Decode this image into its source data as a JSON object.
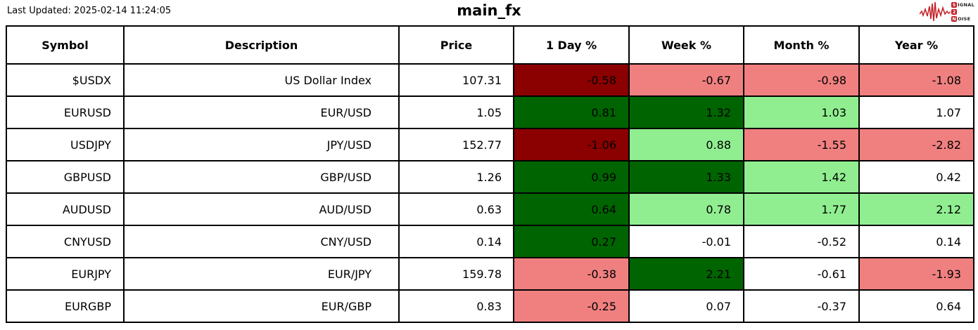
{
  "header": {
    "last_updated": "Last Updated: 2025-02-14 11:24:05",
    "title": "main_fx"
  },
  "logo": {
    "name": "Signal 2 Noise",
    "lines": [
      {
        "initial": "S",
        "rest": "IGNAL"
      },
      {
        "initial": "2",
        "rest": ""
      },
      {
        "initial": "N",
        "rest": "OISE"
      }
    ],
    "red": "#c41e25"
  },
  "colors": {
    "strong_negative": "#8b0000",
    "negative": "#f08080",
    "strong_positive": "#006400",
    "positive": "#90ee90",
    "neutral": "#ffffff"
  },
  "chart_data": {
    "type": "table",
    "title": "main_fx",
    "columns": [
      "Symbol",
      "Description",
      "Price",
      "1 Day %",
      "Week %",
      "Month %",
      "Year %"
    ],
    "rows": [
      {
        "symbol": "$USDX",
        "description": "US Dollar Index",
        "price": "107.31",
        "changes": [
          {
            "value": "-0.58",
            "tone": "strong_negative"
          },
          {
            "value": "-0.67",
            "tone": "negative"
          },
          {
            "value": "-0.98",
            "tone": "negative"
          },
          {
            "value": "-1.08",
            "tone": "negative"
          }
        ]
      },
      {
        "symbol": "EURUSD",
        "description": "EUR/USD",
        "price": "1.05",
        "changes": [
          {
            "value": "0.81",
            "tone": "strong_positive"
          },
          {
            "value": "1.32",
            "tone": "strong_positive"
          },
          {
            "value": "1.03",
            "tone": "positive"
          },
          {
            "value": "1.07",
            "tone": "neutral"
          }
        ]
      },
      {
        "symbol": "USDJPY",
        "description": "JPY/USD",
        "price": "152.77",
        "changes": [
          {
            "value": "-1.06",
            "tone": "strong_negative"
          },
          {
            "value": "0.88",
            "tone": "positive"
          },
          {
            "value": "-1.55",
            "tone": "negative"
          },
          {
            "value": "-2.82",
            "tone": "negative"
          }
        ]
      },
      {
        "symbol": "GBPUSD",
        "description": "GBP/USD",
        "price": "1.26",
        "changes": [
          {
            "value": "0.99",
            "tone": "strong_positive"
          },
          {
            "value": "1.33",
            "tone": "strong_positive"
          },
          {
            "value": "1.42",
            "tone": "positive"
          },
          {
            "value": "0.42",
            "tone": "neutral"
          }
        ]
      },
      {
        "symbol": "AUDUSD",
        "description": "AUD/USD",
        "price": "0.63",
        "changes": [
          {
            "value": "0.64",
            "tone": "strong_positive"
          },
          {
            "value": "0.78",
            "tone": "positive"
          },
          {
            "value": "1.77",
            "tone": "positive"
          },
          {
            "value": "2.12",
            "tone": "positive"
          }
        ]
      },
      {
        "symbol": "CNYUSD",
        "description": "CNY/USD",
        "price": "0.14",
        "changes": [
          {
            "value": "0.27",
            "tone": "strong_positive"
          },
          {
            "value": "-0.01",
            "tone": "neutral"
          },
          {
            "value": "-0.52",
            "tone": "neutral"
          },
          {
            "value": "0.14",
            "tone": "neutral"
          }
        ]
      },
      {
        "symbol": "EURJPY",
        "description": "EUR/JPY",
        "price": "159.78",
        "changes": [
          {
            "value": "-0.38",
            "tone": "negative"
          },
          {
            "value": "2.21",
            "tone": "strong_positive"
          },
          {
            "value": "-0.61",
            "tone": "neutral"
          },
          {
            "value": "-1.93",
            "tone": "negative"
          }
        ]
      },
      {
        "symbol": "EURGBP",
        "description": "EUR/GBP",
        "price": "0.83",
        "changes": [
          {
            "value": "-0.25",
            "tone": "negative"
          },
          {
            "value": "0.07",
            "tone": "neutral"
          },
          {
            "value": "-0.37",
            "tone": "neutral"
          },
          {
            "value": "0.64",
            "tone": "neutral"
          }
        ]
      }
    ]
  }
}
